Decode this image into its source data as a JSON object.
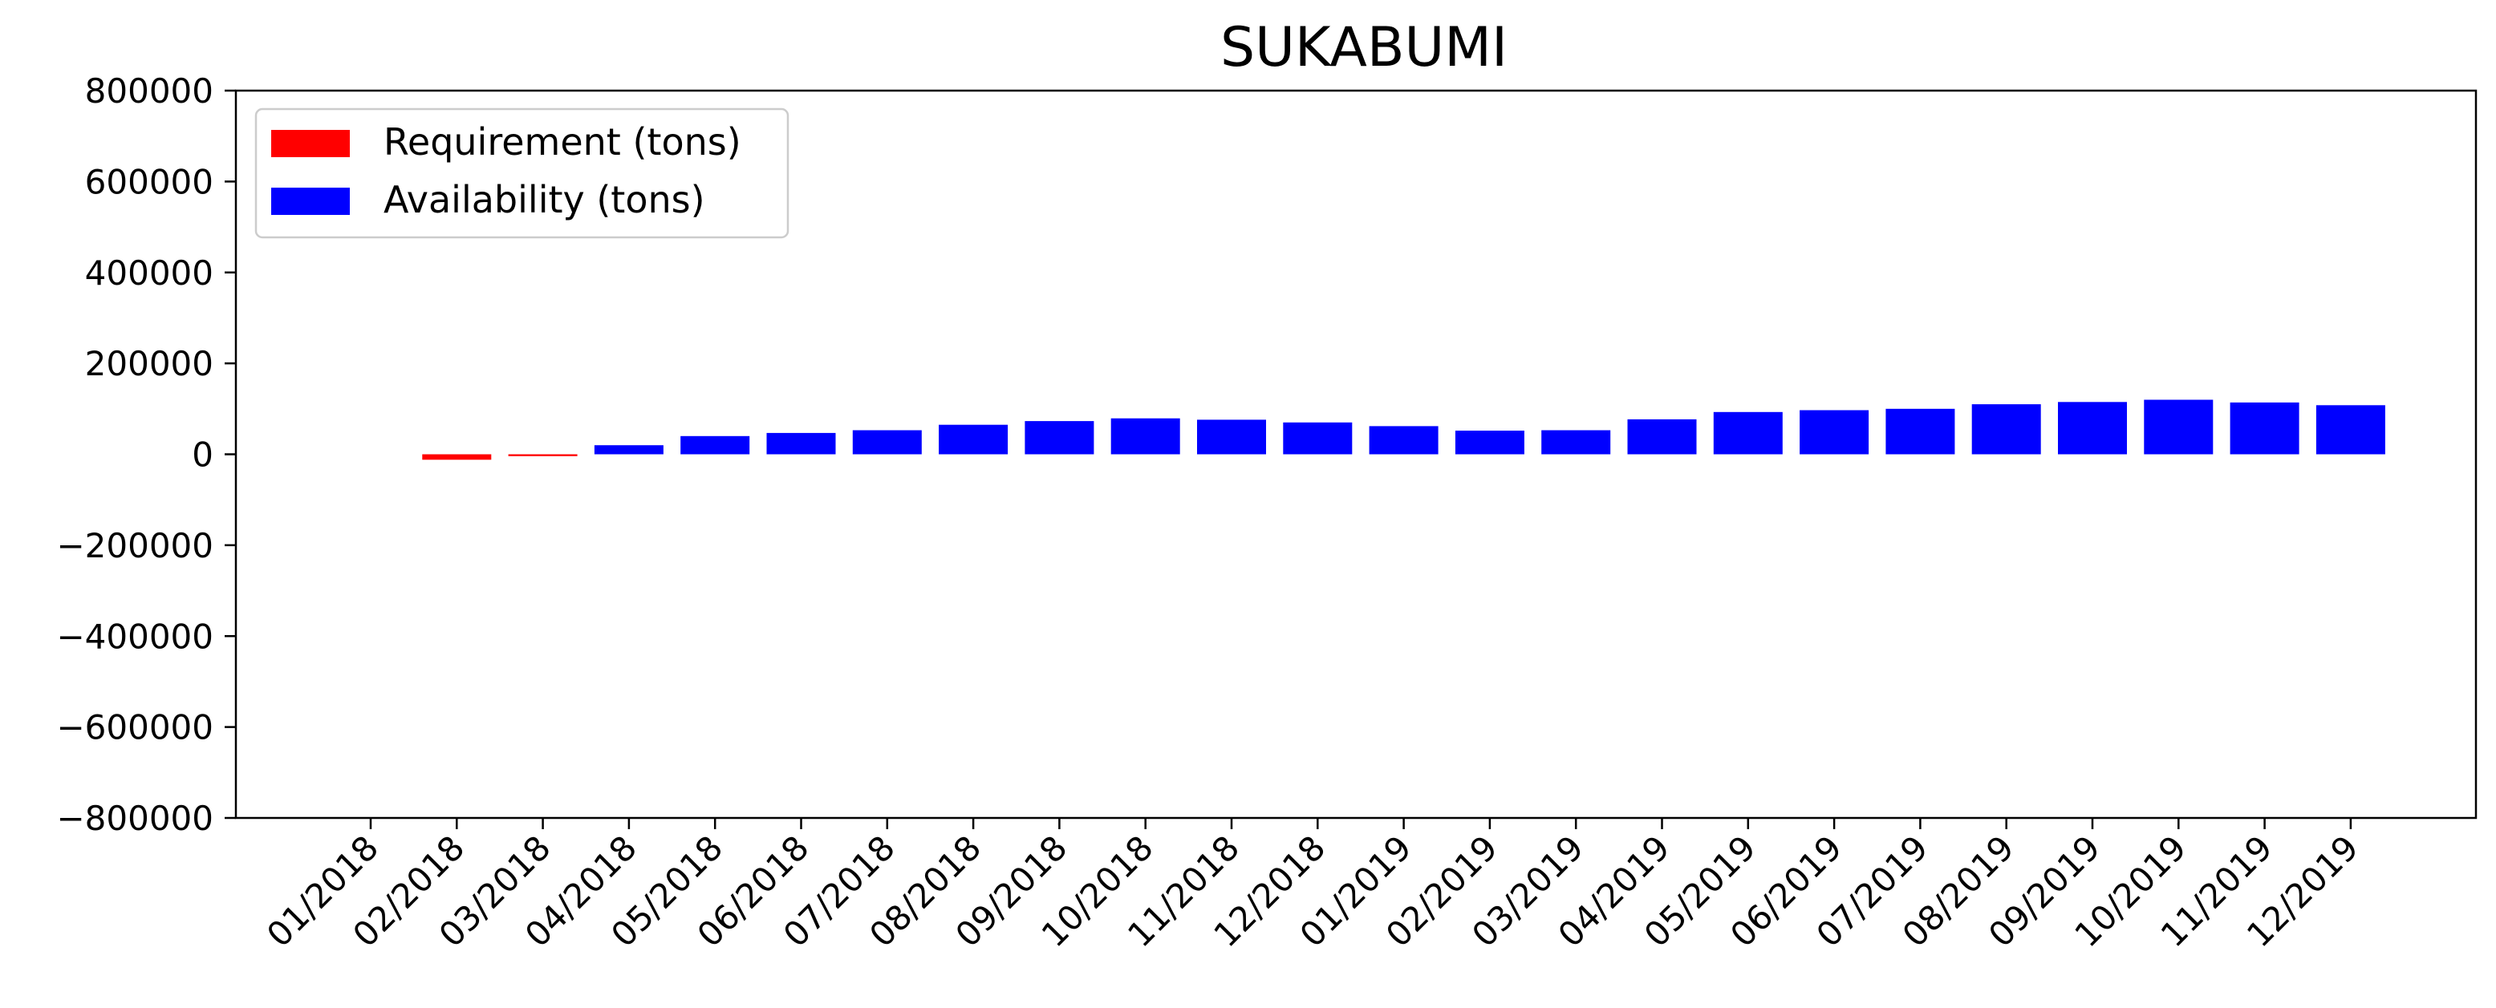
{
  "chart_data": {
    "type": "bar",
    "title": "SUKABUMI",
    "xlabel": "",
    "ylabel": "",
    "categories": [
      "01/2018",
      "02/2018",
      "03/2018",
      "04/2018",
      "05/2018",
      "06/2018",
      "07/2018",
      "08/2018",
      "09/2018",
      "10/2018",
      "11/2018",
      "12/2018",
      "01/2019",
      "02/2019",
      "03/2019",
      "04/2019",
      "05/2019",
      "06/2019",
      "07/2019",
      "08/2019",
      "09/2019",
      "10/2019",
      "11/2019",
      "12/2019"
    ],
    "series": [
      {
        "name": "Requirement (tons)",
        "color": "#ff0000",
        "values": [
          0,
          -12000,
          -4000,
          0,
          0,
          0,
          0,
          0,
          0,
          0,
          0,
          0,
          0,
          0,
          0,
          0,
          0,
          0,
          0,
          0,
          0,
          0,
          0,
          0
        ]
      },
      {
        "name": "Availability (tons)",
        "color": "#0000ff",
        "values": [
          0,
          0,
          0,
          20000,
          40000,
          47000,
          53000,
          65000,
          73000,
          79000,
          76000,
          70000,
          62000,
          52000,
          53000,
          77000,
          93000,
          97000,
          100000,
          110000,
          115000,
          120000,
          114000,
          108000
        ]
      }
    ],
    "yticks": [
      800000,
      600000,
      400000,
      200000,
      0,
      -200000,
      -400000,
      -600000,
      -800000
    ],
    "ytick_labels": [
      "800000",
      "600000",
      "400000",
      "200000",
      "0",
      "−200000",
      "−400000",
      "−600000",
      "−800000"
    ],
    "ylim": [
      -800000,
      800000
    ],
    "grid": false,
    "legend_position": "top-left"
  }
}
